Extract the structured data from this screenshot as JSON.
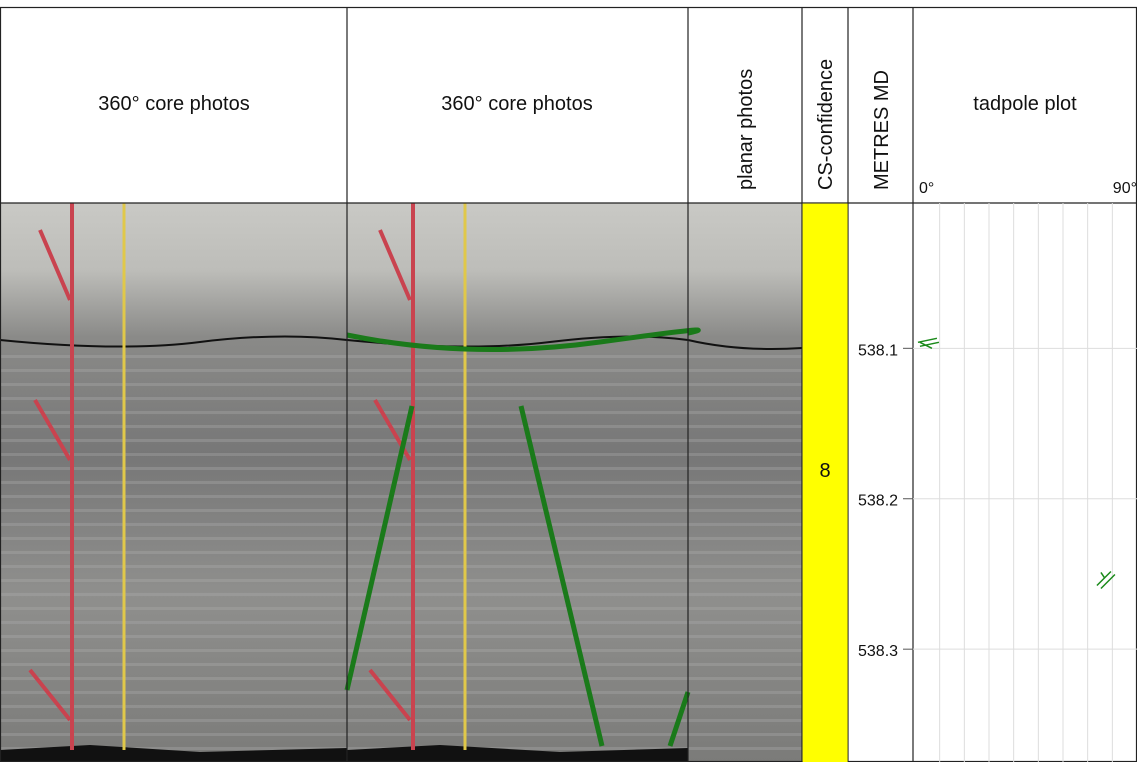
{
  "columns": {
    "core1": "360° core photos",
    "core2": "360° core photos",
    "planar": "planar photos",
    "confidence": "CS-confidence",
    "depth": "METRES MD",
    "tadpole": "tadpole plot"
  },
  "confidence": {
    "value": 8,
    "color": "#ffff00"
  },
  "depth_axis": {
    "ylim": [
      538.0034,
      538.375
    ],
    "yticks": [
      538.1,
      538.2,
      538.3
    ],
    "grid": true
  },
  "tadpole": {
    "xlim": [
      0,
      90
    ],
    "xticks": [
      {
        "value": 0,
        "label": "0°"
      },
      {
        "value": 90,
        "label": "90°"
      }
    ],
    "xgrid": [
      10,
      20,
      30,
      40,
      50,
      60,
      70,
      80
    ],
    "color": "#1a8a1a",
    "points": [
      {
        "depth": 538.096,
        "dip": 2
      },
      {
        "depth": 538.253,
        "dip": 77
      }
    ]
  }
}
